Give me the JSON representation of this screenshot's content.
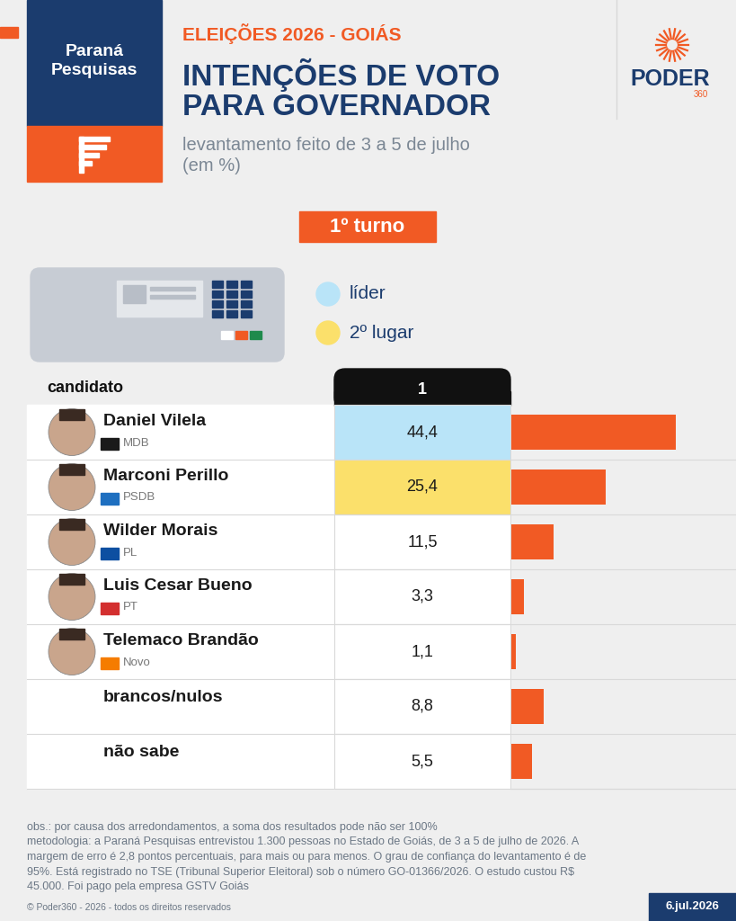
{
  "header": {
    "brand": "Paraná\nPesquisas",
    "kicker": "ELEIÇÕES 2026 - GOIÁS",
    "title": "INTENÇÕES DE VOTO\nPARA GOVERNADOR",
    "subtitle": "levantamento feito de 3 a 5 de julho\n(em %)",
    "publisher": "PODER",
    "publisher_suffix": "360"
  },
  "round": "1º turno",
  "highlight_key": [
    {
      "label": "líder",
      "color": "#b9e4f8"
    },
    {
      "label": "2º lugar",
      "color": "#fbe06b"
    }
  ],
  "chart_data": {
    "type": "bar",
    "orientation": "horizontal",
    "column_header": "candidato",
    "value_header": "1",
    "categories": [
      "Daniel Vilela",
      "Marconi Perillo",
      "Wilder Morais",
      "Luis Cesar Bueno",
      "Telemaco Brandão",
      "brancos/nulos",
      "não sabe"
    ],
    "parties": [
      "MDB",
      "PSDB",
      "PL",
      "PT",
      "Novo",
      null,
      null
    ],
    "values": [
      44.4,
      25.4,
      11.5,
      3.3,
      1.1,
      8.8,
      5.5
    ],
    "value_labels": [
      "44,4",
      "25,4",
      "11,5",
      "3,3",
      "1,1",
      "8,8",
      "5,5"
    ],
    "color": "#f15a24",
    "xlim": [
      0,
      50
    ],
    "xticks": [],
    "data_labels": true,
    "tick_labels": false,
    "grid": false
  },
  "notes": [
    "obs.: por causa dos arredondamentos, a soma dos resultados pode não ser 100%",
    "metodologia: a Paraná Pesquisas entrevistou 1.300 pessoas no Estado de Goiás, de 3 a 5 de julho de 2026. A",
    "margem de erro é 2,8 pontos percentuais, para mais ou para menos. O grau de confiança do levantamento é de",
    "95%. Está registrado no TSE (Tribunal Superior Eleitoral) sob o número GO-01366/2026. O estudo custou R$",
    "45.000. Foi pago pela empresa GSTV Goiás"
  ],
  "copyright": "© Poder360 - 2026 - todos os direitos reservados",
  "date": "6.jul.2026"
}
